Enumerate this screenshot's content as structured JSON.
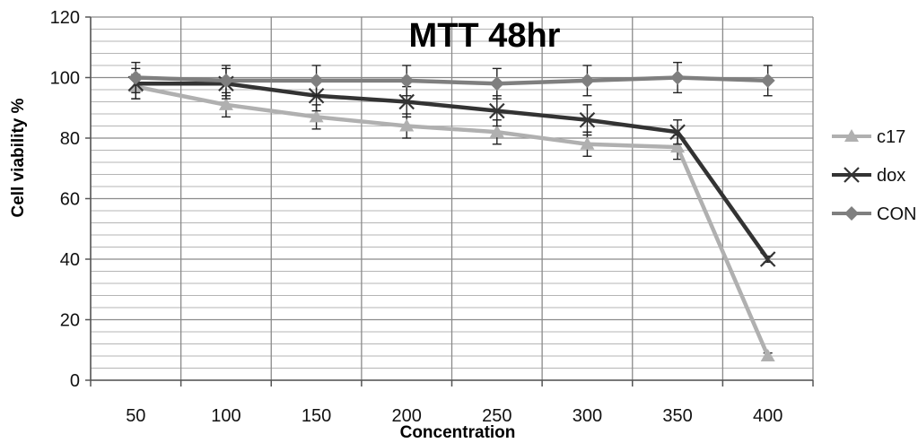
{
  "chart_data": {
    "type": "line",
    "title": "MTT 48hr",
    "xlabel": "Concentration",
    "ylabel": "Cell viability %",
    "categories": [
      "50",
      "100",
      "150",
      "200",
      "250",
      "300",
      "350",
      "400"
    ],
    "ylim": [
      0,
      120
    ],
    "yticks": [
      0,
      20,
      40,
      60,
      80,
      100,
      120
    ],
    "grid": true,
    "legend_position": "right",
    "series": [
      {
        "name": "c17",
        "values": [
          97,
          91,
          87,
          84,
          82,
          78,
          77,
          8
        ],
        "error": [
          4,
          4,
          4,
          4,
          4,
          4,
          4,
          1
        ],
        "color": "#b0b0b0",
        "marker": "triangle"
      },
      {
        "name": "dox",
        "values": [
          98,
          98,
          94,
          92,
          89,
          86,
          82,
          40
        ],
        "error": [
          5,
          5,
          5,
          5,
          5,
          5,
          4,
          1
        ],
        "color": "#333333",
        "marker": "x"
      },
      {
        "name": "CON",
        "values": [
          100,
          99,
          99,
          99,
          98,
          99,
          100,
          99
        ],
        "error": [
          5,
          5,
          5,
          5,
          5,
          5,
          5,
          5
        ],
        "color": "#7f7f7f",
        "marker": "diamond"
      }
    ]
  }
}
